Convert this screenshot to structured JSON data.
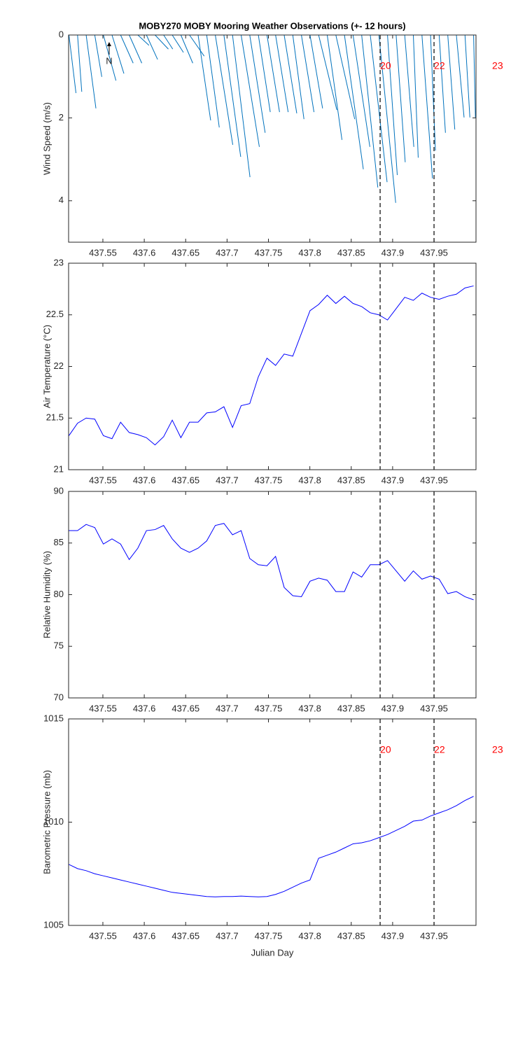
{
  "chart_data": [
    {
      "type": "stick",
      "title": "MOBY270 MOBY Mooring Weather Observations (+- 12 hours)",
      "ylabel": "Wind Speed (m/s)",
      "color": "#0072bd",
      "x": [
        437.509,
        437.5194,
        437.5298,
        437.5402,
        437.5506,
        437.561,
        437.5714,
        437.5818,
        437.5922,
        437.6026,
        437.613,
        437.6234,
        437.6338,
        437.6442,
        437.6546,
        437.665,
        437.6754,
        437.6858,
        437.6962,
        437.7066,
        437.717,
        437.7274,
        437.7378,
        437.7482,
        437.7586,
        437.769,
        437.7794,
        437.7898,
        437.8002,
        437.8106,
        437.821,
        437.8314,
        437.8418,
        437.8522,
        437.8626,
        437.873,
        437.8834,
        437.8938,
        437.9042,
        437.9146,
        437.925,
        437.9354,
        437.9458,
        437.9562,
        437.9666,
        437.977,
        437.9874,
        437.9978
      ],
      "x_end": [
        437.5175,
        437.5245,
        437.5416,
        437.5487,
        437.5658,
        437.5754,
        437.5866,
        437.597,
        437.6057,
        437.6161,
        437.6291,
        437.6344,
        437.6473,
        437.6586,
        437.6724,
        437.6802,
        437.6906,
        437.7069,
        437.7165,
        437.7277,
        437.739,
        437.746,
        437.7522,
        437.7634,
        437.7738,
        437.7842,
        437.7929,
        437.805,
        437.8154,
        437.8326,
        437.8388,
        437.8542,
        437.8646,
        437.8725,
        437.8821,
        437.8933,
        437.9037,
        437.9056,
        437.9152,
        437.9256,
        437.9309,
        437.9481,
        437.9517,
        437.9638,
        437.9751,
        437.9863,
        437.9933,
        438.0
      ],
      "values": [
        1.4,
        1.37,
        1.77,
        1.01,
        1.1,
        0.93,
        0.68,
        0.68,
        0.25,
        0.59,
        0.34,
        0.34,
        0.42,
        0.68,
        0.51,
        2.06,
        2.23,
        2.65,
        2.94,
        3.43,
        2.7,
        2.36,
        1.86,
        1.86,
        1.86,
        1.89,
        2.03,
        1.86,
        1.77,
        1.81,
        2.53,
        2.03,
        3.24,
        2.7,
        3.68,
        3.55,
        4.05,
        3.38,
        3.07,
        2.7,
        2.96,
        3.46,
        2.79,
        2.36,
        2.28,
        1.99,
        1.99,
        1.99
      ],
      "xlim": [
        437.5086,
        438.0007
      ],
      "xticks": [
        437.55,
        437.6,
        437.65,
        437.7,
        437.75,
        437.8,
        437.85,
        437.9,
        437.95
      ],
      "ylim": [
        0,
        5
      ],
      "y_reversed": true,
      "yticks": [
        0,
        2,
        4
      ],
      "vlines": [
        437.8849,
        437.95
      ],
      "annotations": [
        {
          "text": "N",
          "x": 437.5576,
          "arrow": true
        },
        {
          "text": "20",
          "x": 437.8849,
          "color": "#ff0000"
        },
        {
          "text": "22",
          "x": 437.95,
          "color": "#ff0000"
        },
        {
          "text": "23",
          "x": 438.0202,
          "color": "#ff0000"
        }
      ]
    },
    {
      "type": "line",
      "ylabel": "Air Temperature (°C)",
      "color": "#0000ff",
      "x": [
        437.509,
        437.5194,
        437.5298,
        437.5402,
        437.5506,
        437.561,
        437.5714,
        437.5818,
        437.5922,
        437.6026,
        437.613,
        437.6234,
        437.6338,
        437.6442,
        437.6546,
        437.665,
        437.6754,
        437.6858,
        437.6962,
        437.7066,
        437.717,
        437.7274,
        437.7378,
        437.7482,
        437.7586,
        437.769,
        437.7794,
        437.7898,
        437.8002,
        437.8106,
        437.821,
        437.8314,
        437.8418,
        437.8522,
        437.8626,
        437.873,
        437.8834,
        437.8938,
        437.9042,
        437.9146,
        437.925,
        437.9354,
        437.9458,
        437.9562,
        437.9666,
        437.977,
        437.9874,
        437.9978
      ],
      "values": [
        21.33,
        21.45,
        21.5,
        21.49,
        21.33,
        21.3,
        21.46,
        21.36,
        21.34,
        21.31,
        21.24,
        21.32,
        21.48,
        21.31,
        21.46,
        21.46,
        21.55,
        21.56,
        21.61,
        21.41,
        21.62,
        21.64,
        21.9,
        22.08,
        22.01,
        22.12,
        22.1,
        22.32,
        22.54,
        22.6,
        22.69,
        22.61,
        22.68,
        22.61,
        22.58,
        22.52,
        22.5,
        22.45,
        22.56,
        22.67,
        22.64,
        22.71,
        22.67,
        22.65,
        22.68,
        22.7,
        22.76,
        22.78
      ],
      "xlim": [
        437.5086,
        438.0007
      ],
      "xticks": [
        437.55,
        437.6,
        437.65,
        437.7,
        437.75,
        437.8,
        437.85,
        437.9,
        437.95
      ],
      "ylim": [
        21,
        23
      ],
      "yticks": [
        21,
        21.5,
        22,
        22.5,
        23
      ],
      "vlines": [
        437.8849,
        437.95
      ]
    },
    {
      "type": "line",
      "ylabel": "Relative Humidity (%)",
      "color": "#0000ff",
      "x": [
        437.509,
        437.5194,
        437.5298,
        437.5402,
        437.5506,
        437.561,
        437.5714,
        437.5818,
        437.5922,
        437.6026,
        437.613,
        437.6234,
        437.6338,
        437.6442,
        437.6546,
        437.665,
        437.6754,
        437.6858,
        437.6962,
        437.7066,
        437.717,
        437.7274,
        437.7378,
        437.7482,
        437.7586,
        437.769,
        437.7794,
        437.7898,
        437.8002,
        437.8106,
        437.821,
        437.8314,
        437.8418,
        437.8522,
        437.8626,
        437.873,
        437.8834,
        437.8938,
        437.9042,
        437.9146,
        437.925,
        437.9354,
        437.9458,
        437.9562,
        437.9666,
        437.977,
        437.9874,
        437.9978
      ],
      "values": [
        86.2,
        86.2,
        86.8,
        86.5,
        84.9,
        85.4,
        84.9,
        83.4,
        84.5,
        86.2,
        86.3,
        86.7,
        85.4,
        84.5,
        84.1,
        84.5,
        85.2,
        86.7,
        86.9,
        85.8,
        86.2,
        83.5,
        82.9,
        82.8,
        83.7,
        80.7,
        79.9,
        79.8,
        81.3,
        81.6,
        81.4,
        80.3,
        80.3,
        82.2,
        81.7,
        82.9,
        82.9,
        83.3,
        82.3,
        81.3,
        82.3,
        81.5,
        81.8,
        81.5,
        80.1,
        80.3,
        79.8,
        79.5
      ],
      "xlim": [
        437.5086,
        438.0007
      ],
      "xticks": [
        437.55,
        437.6,
        437.65,
        437.7,
        437.75,
        437.8,
        437.85,
        437.9,
        437.95
      ],
      "ylim": [
        70,
        90
      ],
      "yticks": [
        70,
        75,
        80,
        85,
        90
      ],
      "vlines": [
        437.8849,
        437.95
      ]
    },
    {
      "type": "line",
      "ylabel": "Barometric Pressure (mb)",
      "xlabel": "Julian Day",
      "color": "#0000ff",
      "x": [
        437.509,
        437.5194,
        437.5298,
        437.5402,
        437.5506,
        437.561,
        437.5714,
        437.5818,
        437.5922,
        437.6026,
        437.613,
        437.6234,
        437.6338,
        437.6442,
        437.6546,
        437.665,
        437.6754,
        437.6858,
        437.6962,
        437.7066,
        437.717,
        437.7274,
        437.7378,
        437.7482,
        437.7586,
        437.769,
        437.7794,
        437.7898,
        437.8002,
        437.8106,
        437.821,
        437.8314,
        437.8418,
        437.8522,
        437.8626,
        437.873,
        437.8834,
        437.8938,
        437.9042,
        437.9146,
        437.925,
        437.9354,
        437.9458,
        437.9562,
        437.9666,
        437.977,
        437.9874,
        437.9978
      ],
      "values": [
        1007.95,
        1007.75,
        1007.65,
        1007.5,
        1007.4,
        1007.3,
        1007.2,
        1007.1,
        1007.0,
        1006.9,
        1006.8,
        1006.7,
        1006.6,
        1006.55,
        1006.5,
        1006.45,
        1006.4,
        1006.38,
        1006.4,
        1006.4,
        1006.42,
        1006.4,
        1006.38,
        1006.4,
        1006.5,
        1006.65,
        1006.85,
        1007.05,
        1007.2,
        1008.25,
        1008.4,
        1008.55,
        1008.75,
        1008.95,
        1009.0,
        1009.1,
        1009.25,
        1009.4,
        1009.6,
        1009.8,
        1010.05,
        1010.1,
        1010.3,
        1010.45,
        1010.6,
        1010.8,
        1011.05,
        1011.25
      ],
      "xlim": [
        437.5086,
        438.0007
      ],
      "xticks": [
        437.55,
        437.6,
        437.65,
        437.7,
        437.75,
        437.8,
        437.85,
        437.9,
        437.95
      ],
      "ylim": [
        1005,
        1015
      ],
      "yticks": [
        1005,
        1010,
        1015
      ],
      "vlines": [
        437.8849,
        437.95
      ],
      "annotations": [
        {
          "text": "20",
          "x": 437.8849,
          "color": "#ff0000"
        },
        {
          "text": "22",
          "x": 437.95,
          "color": "#ff0000"
        },
        {
          "text": "23",
          "x": 438.0202,
          "color": "#ff0000"
        }
      ]
    }
  ]
}
